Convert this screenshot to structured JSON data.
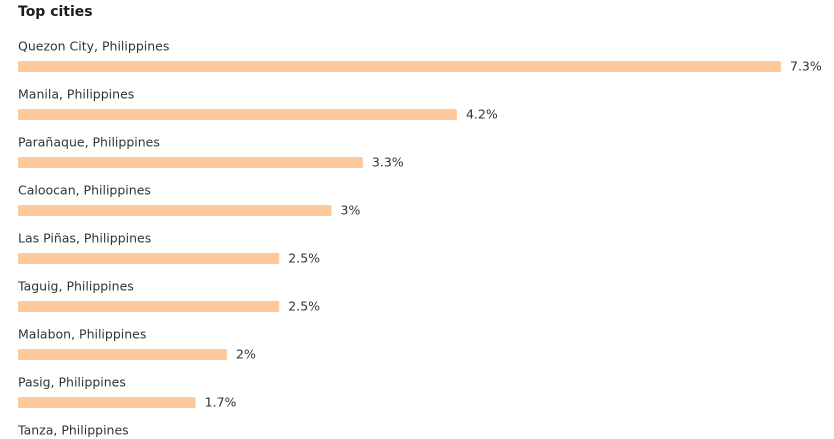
{
  "chart_data": {
    "type": "bar",
    "orientation": "horizontal",
    "title": "Top cities",
    "categories": [
      "Quezon City, Philippines",
      "Manila, Philippines",
      "Parañaque, Philippines",
      "Caloocan, Philippines",
      "Las Piñas, Philippines",
      "Taguig, Philippines",
      "Malabon, Philippines",
      "Pasig, Philippines",
      "Tanza, Philippines"
    ],
    "values": [
      7.3,
      4.2,
      3.3,
      3,
      2.5,
      2.5,
      2,
      1.7,
      null
    ],
    "value_labels": [
      "7.3%",
      "4.2%",
      "3.3%",
      "3%",
      "2.5%",
      "2.5%",
      "2%",
      "1.7%",
      null
    ],
    "color": "#fec89a"
  }
}
